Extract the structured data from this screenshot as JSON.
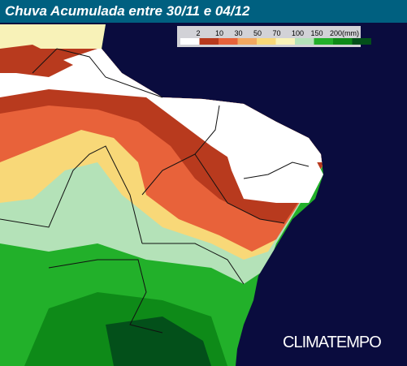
{
  "header": {
    "title": "Chuva Acumulada entre 30/11 e 04/12"
  },
  "legend": {
    "labels": [
      "2",
      "10",
      "30",
      "50",
      "70",
      "100",
      "150",
      "200(mm)"
    ],
    "colors": [
      "#ffffff",
      "#b83a1e",
      "#e8623a",
      "#f2a860",
      "#f8d878",
      "#f8f2b8",
      "#b4e2b8",
      "#22b02a",
      "#0e8a18",
      "#03501a"
    ]
  },
  "brand": {
    "name": "CLIMATEMPO"
  }
}
